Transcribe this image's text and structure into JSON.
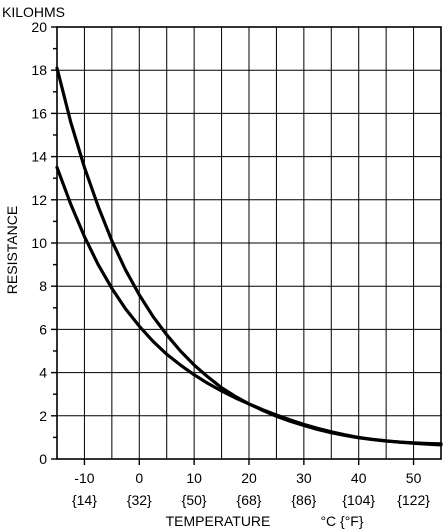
{
  "chart_data": {
    "type": "line",
    "title": "",
    "units_label": "KILOHMS",
    "ylabel": "RESISTANCE",
    "xlabel": "TEMPERATURE",
    "xunit": "°C {°F}",
    "xlim": [
      -15,
      55
    ],
    "ylim": [
      0,
      20
    ],
    "grid": true,
    "legend": "none",
    "line_color": "#000000",
    "y_ticks": [
      0,
      2,
      4,
      6,
      8,
      10,
      12,
      14,
      16,
      18,
      20
    ],
    "y_tick_labels": [
      "0",
      "2",
      "4",
      "6",
      "8",
      "10",
      "12",
      "14",
      "16",
      "18",
      "20"
    ],
    "x_ticks": [
      -10,
      0,
      10,
      20,
      30,
      40,
      50
    ],
    "x_tick_labels": [
      "-10",
      "0",
      "10",
      "20",
      "30",
      "40",
      "50"
    ],
    "x_tick_labels_f": [
      "{14}",
      "{32}",
      "{50}",
      "{68}",
      "{86}",
      "{104}",
      "{122}"
    ],
    "series": [
      {
        "x": [
          -15,
          -12.5,
          -10,
          -7.5,
          -5,
          -2.5,
          0,
          2.5,
          5,
          7.5,
          10,
          12.5,
          15,
          17.5,
          20,
          22.5,
          25,
          27.5,
          30,
          32.5,
          35,
          37.5,
          40,
          42.5,
          45,
          47.5,
          50,
          52.5,
          55
        ],
        "y": [
          18.1,
          15.6,
          13.5,
          11.7,
          10.1,
          8.75,
          7.6,
          6.6,
          5.75,
          5.0,
          4.35,
          3.8,
          3.3,
          2.9,
          2.55,
          2.25,
          1.98,
          1.75,
          1.55,
          1.37,
          1.22,
          1.09,
          0.98,
          0.9,
          0.83,
          0.78,
          0.75,
          0.72,
          0.7
        ]
      },
      {
        "x": [
          -15,
          -12.5,
          -10,
          -7.5,
          -5,
          -2.5,
          0,
          2.5,
          5,
          7.5,
          10,
          12.5,
          15,
          17.5,
          20,
          22.5,
          25,
          27.5,
          30,
          32.5,
          35,
          37.5,
          40,
          42.5,
          45,
          47.5,
          50,
          52.5,
          55
        ],
        "y": [
          13.5,
          11.8,
          10.3,
          9.0,
          7.9,
          6.95,
          6.15,
          5.45,
          4.85,
          4.35,
          3.9,
          3.5,
          3.15,
          2.83,
          2.55,
          2.28,
          2.04,
          1.81,
          1.6,
          1.42,
          1.26,
          1.12,
          1.0,
          0.91,
          0.84,
          0.78,
          0.73,
          0.69,
          0.65
        ]
      }
    ]
  }
}
